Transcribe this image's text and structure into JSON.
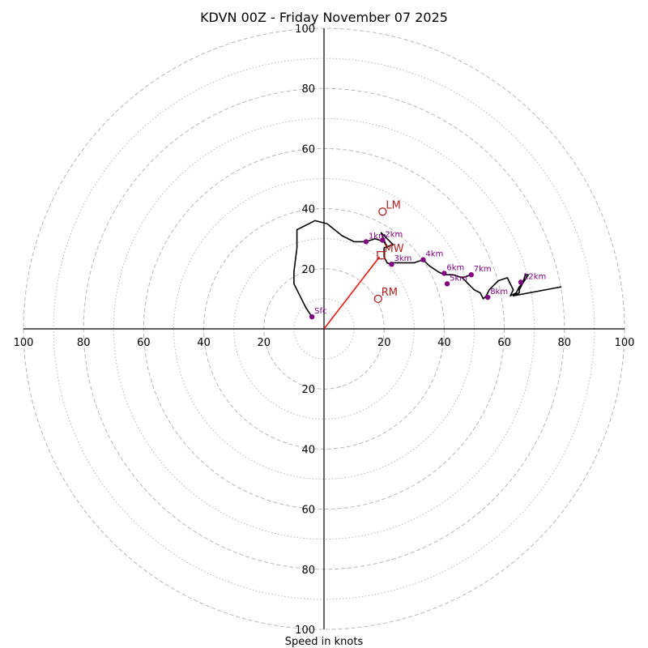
{
  "chart_data": {
    "type": "hodograph",
    "title": "KDVN 00Z - Friday November 07 2025",
    "xlabel": "Speed in knots",
    "xlim": [
      -100,
      100
    ],
    "ylim": [
      -100,
      100
    ],
    "ring_step_major": 20,
    "ring_step_minor": 10,
    "x_tick_labels": [
      "100",
      "80",
      "60",
      "40",
      "20",
      "20",
      "40",
      "60",
      "80",
      "100"
    ],
    "y_tick_labels": [
      "100",
      "80",
      "60",
      "40",
      "20",
      "20",
      "40",
      "60",
      "80",
      "100"
    ],
    "colors": {
      "trace": "#000000",
      "height_markers": "#800080",
      "motion": "#b22222",
      "mean_wind_vector": "#e8190f",
      "grid": "#b8b8b8",
      "axes": "#000000"
    },
    "trace": [
      [
        -4,
        4
      ],
      [
        -6,
        7
      ],
      [
        -8,
        11
      ],
      [
        -10,
        15
      ],
      [
        -10,
        19
      ],
      [
        -9,
        27
      ],
      [
        -9,
        33
      ],
      [
        -3,
        36
      ],
      [
        1,
        35
      ],
      [
        6,
        31
      ],
      [
        10,
        29
      ],
      [
        14,
        29
      ],
      [
        17,
        30
      ],
      [
        20,
        29
      ],
      [
        21,
        27
      ],
      [
        19,
        32
      ],
      [
        23,
        28
      ],
      [
        20,
        27
      ],
      [
        20,
        24
      ],
      [
        21,
        22
      ],
      [
        23,
        21
      ],
      [
        22,
        22
      ],
      [
        24,
        22
      ],
      [
        30,
        22
      ],
      [
        33,
        23
      ],
      [
        35,
        21
      ],
      [
        38,
        19
      ],
      [
        40,
        18
      ],
      [
        43,
        18
      ],
      [
        46,
        17
      ],
      [
        49,
        18
      ],
      [
        46,
        17
      ],
      [
        47,
        16
      ],
      [
        48,
        15
      ],
      [
        50,
        13
      ],
      [
        52,
        12
      ],
      [
        53,
        10
      ],
      [
        54,
        11
      ],
      [
        55,
        13
      ],
      [
        58,
        16
      ],
      [
        61,
        17
      ],
      [
        62,
        15
      ],
      [
        63,
        13
      ],
      [
        62,
        11
      ],
      [
        64,
        12
      ],
      [
        65,
        14
      ],
      [
        66,
        15
      ],
      [
        67,
        18
      ],
      [
        68,
        18
      ],
      [
        66,
        15
      ],
      [
        65,
        13
      ],
      [
        65,
        12
      ],
      [
        63,
        11
      ],
      [
        79,
        14
      ]
    ],
    "height_markers": [
      {
        "label": "Sfc",
        "u": -4,
        "v": 4
      },
      {
        "label": "1km",
        "u": 14,
        "v": 29
      },
      {
        "label": "2km",
        "u": 19.5,
        "v": 29.5
      },
      {
        "label": "3km",
        "u": 22.5,
        "v": 21.5
      },
      {
        "label": "4km",
        "u": 33,
        "v": 23
      },
      {
        "label": "5km",
        "u": 41,
        "v": 15
      },
      {
        "label": "6km",
        "u": 40,
        "v": 18.5
      },
      {
        "label": "7km",
        "u": 49,
        "v": 18
      },
      {
        "label": "8km",
        "u": 54.5,
        "v": 10.5
      },
      {
        "label": "12km",
        "u": 65.5,
        "v": 15.5
      }
    ],
    "storm_motion": [
      {
        "label": "LM",
        "u": 19.5,
        "v": 39,
        "marker": "circle"
      },
      {
        "label": "MW",
        "u": 19,
        "v": 24.5,
        "marker": "square"
      },
      {
        "label": "RM",
        "u": 18,
        "v": 10,
        "marker": "circle"
      }
    ],
    "mean_wind_vector": {
      "from": [
        0,
        0
      ],
      "to": [
        18.5,
        24
      ]
    }
  }
}
